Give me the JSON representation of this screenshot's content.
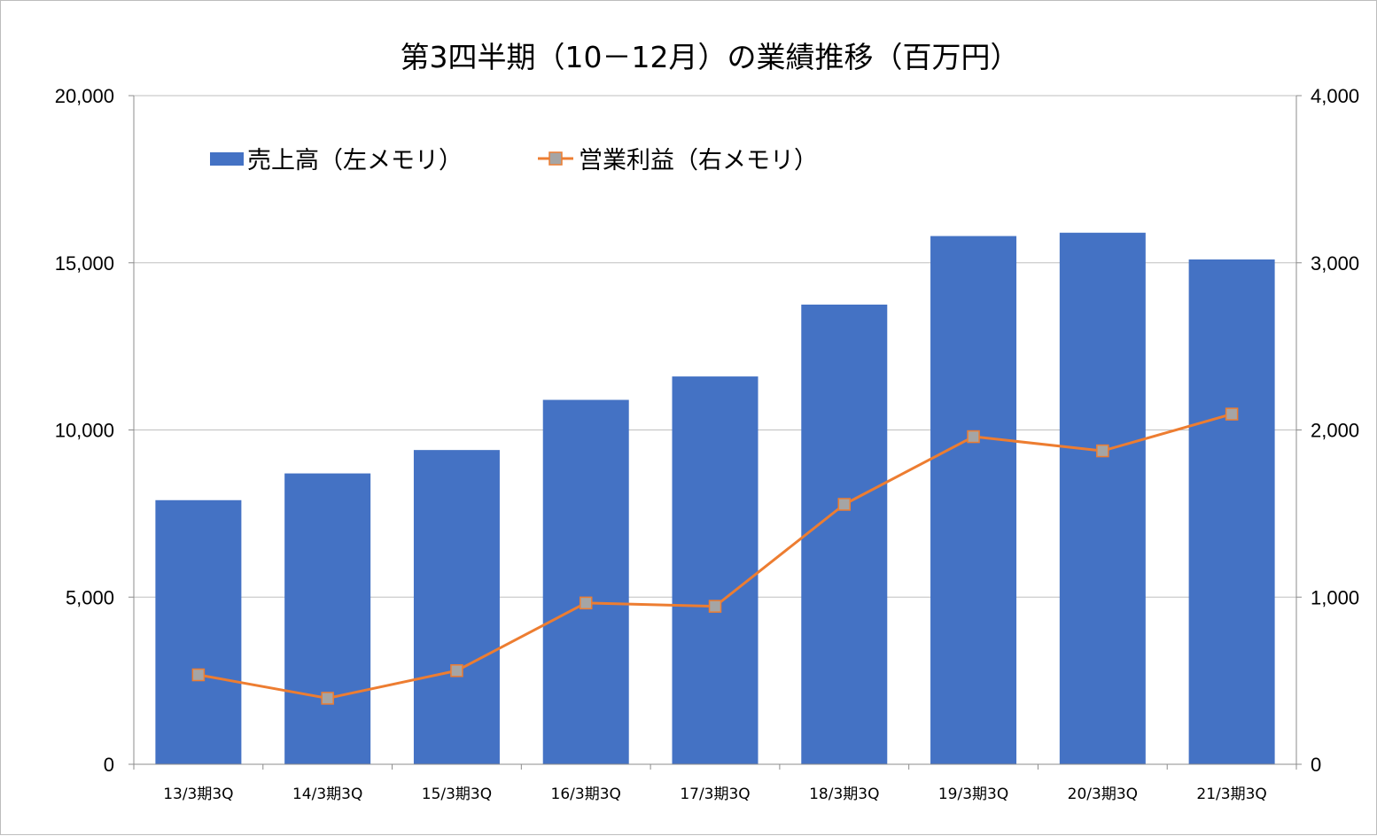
{
  "chart_data": {
    "type": "bar+line",
    "title": "第3四半期（10－12月）の業績推移（百万円）",
    "categories": [
      "13/3期3Q",
      "14/3期3Q",
      "15/3期3Q",
      "16/3期3Q",
      "17/3期3Q",
      "18/3期3Q",
      "19/3期3Q",
      "20/3期3Q",
      "21/3期3Q"
    ],
    "series": [
      {
        "name": "売上高（左メモリ）",
        "type": "bar",
        "axis": "left",
        "color": "#4472C4",
        "values": [
          7900,
          8700,
          9400,
          10900,
          11600,
          13750,
          15800,
          15900,
          15100
        ]
      },
      {
        "name": "営業利益（右メモリ）",
        "type": "line",
        "axis": "right",
        "color": "#ED7D31",
        "marker_color": "#A5A5A5",
        "values": [
          535,
          395,
          560,
          965,
          945,
          1555,
          1960,
          1875,
          2095
        ]
      }
    ],
    "y_left": {
      "min": 0,
      "max": 20000,
      "ticks": [
        0,
        5000,
        10000,
        15000,
        20000
      ],
      "tick_labels": [
        "0",
        "5,000",
        "10,000",
        "15,000",
        "20,000"
      ]
    },
    "y_right": {
      "min": 0,
      "max": 4000,
      "ticks": [
        0,
        1000,
        2000,
        3000,
        4000
      ],
      "tick_labels": [
        "0",
        "1,000",
        "2,000",
        "3,000",
        "4,000"
      ]
    },
    "grid": true,
    "legend_position": "top-left"
  }
}
